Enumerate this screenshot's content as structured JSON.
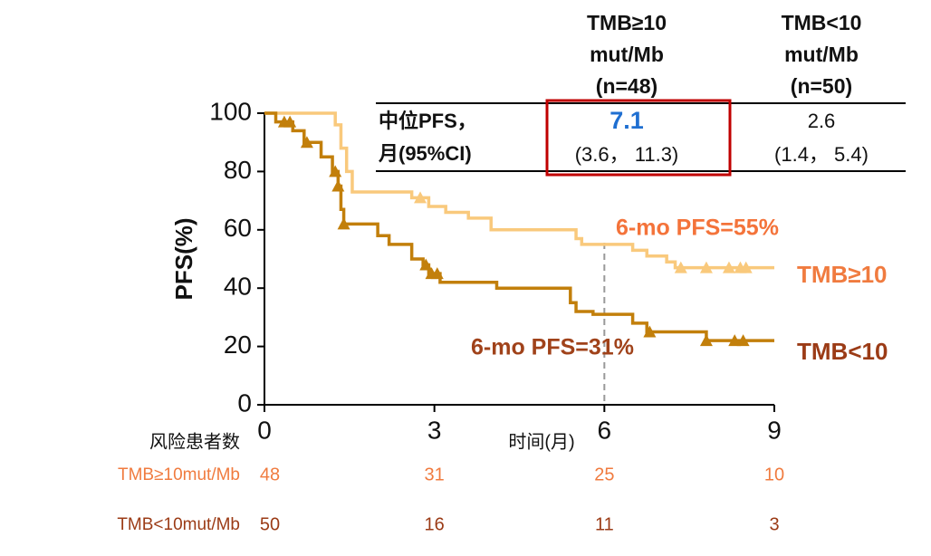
{
  "chart_data": {
    "type": "km",
    "xlabel": "时间(月)",
    "ylabel": "PFS(%)",
    "xlim": [
      0,
      9
    ],
    "xticks": [
      0,
      3,
      6,
      9
    ],
    "ylim": [
      0,
      100
    ],
    "yticks": [
      0,
      20,
      40,
      60,
      80,
      100
    ],
    "reference_x": 6,
    "series": [
      {
        "name": "TMB≥10",
        "color": "#f9c97c",
        "x": [
          0,
          1.25,
          1.35,
          1.45,
          1.55,
          2.6,
          2.9,
          3.2,
          3.6,
          4.0,
          5.5,
          5.6,
          6.5,
          6.75,
          7.1,
          7.25,
          9
        ],
        "values": [
          100,
          96,
          88,
          80,
          73,
          71,
          68,
          66,
          64,
          60,
          57,
          55,
          53,
          51,
          49,
          47,
          47
        ],
        "censor_x": [
          2.75,
          7.35,
          7.8,
          8.2,
          8.4,
          8.5
        ],
        "censor_y": [
          71,
          47,
          47,
          47,
          47,
          47
        ]
      },
      {
        "name": "TMB<10",
        "color": "#c27f0b",
        "x": [
          0,
          0.2,
          0.5,
          0.7,
          1.0,
          1.2,
          1.3,
          1.35,
          1.4,
          2.0,
          2.2,
          2.6,
          2.8,
          2.9,
          3.1,
          4.1,
          5.4,
          5.5,
          5.8,
          6.5,
          6.75,
          7.8,
          9
        ],
        "values": [
          100,
          97,
          94,
          90,
          85,
          80,
          75,
          67,
          62,
          58,
          55,
          50,
          48,
          45,
          42,
          40,
          35,
          32,
          31,
          28,
          25,
          22,
          22
        ],
        "censor_x": [
          0.35,
          0.45,
          0.75,
          1.25,
          1.3,
          1.4,
          2.85,
          2.95,
          3.05,
          6.8,
          7.8,
          8.3,
          8.45
        ],
        "censor_y": [
          97,
          97,
          90,
          80,
          75,
          62,
          48,
          45,
          45,
          25,
          22,
          22,
          22
        ]
      }
    ],
    "series_label_colors": [
      "#f07b3f",
      "#9b3b16"
    ],
    "annotations": [
      {
        "text": "6-mo PFS=55%",
        "color": "#f4733a"
      },
      {
        "text": "6-mo PFS=31%",
        "color": "#a0421a"
      }
    ],
    "risk_table": {
      "title": "风险患者数",
      "rows": [
        {
          "label": "TMB≥10mut/Mb",
          "color": "#f07b3f",
          "counts": [
            48,
            31,
            25,
            10
          ]
        },
        {
          "label": "TMB<10mut/Mb",
          "color": "#9b3b16",
          "counts": [
            50,
            16,
            11,
            3
          ]
        }
      ]
    }
  },
  "table": {
    "headers": [
      [
        "TMB≥10",
        "mut/Mb",
        "(n=48)"
      ],
      [
        "TMB<10",
        "mut/Mb",
        "(n=50)"
      ]
    ],
    "row_label": [
      "中位PFS，",
      "月(95%CI)"
    ],
    "cells": [
      [
        "7.1",
        "(3.6， 11.3)"
      ],
      [
        "2.6",
        "(1.4， 5.4)"
      ]
    ],
    "highlight_color": "#1f6fd1",
    "box_color": "#c00000"
  }
}
